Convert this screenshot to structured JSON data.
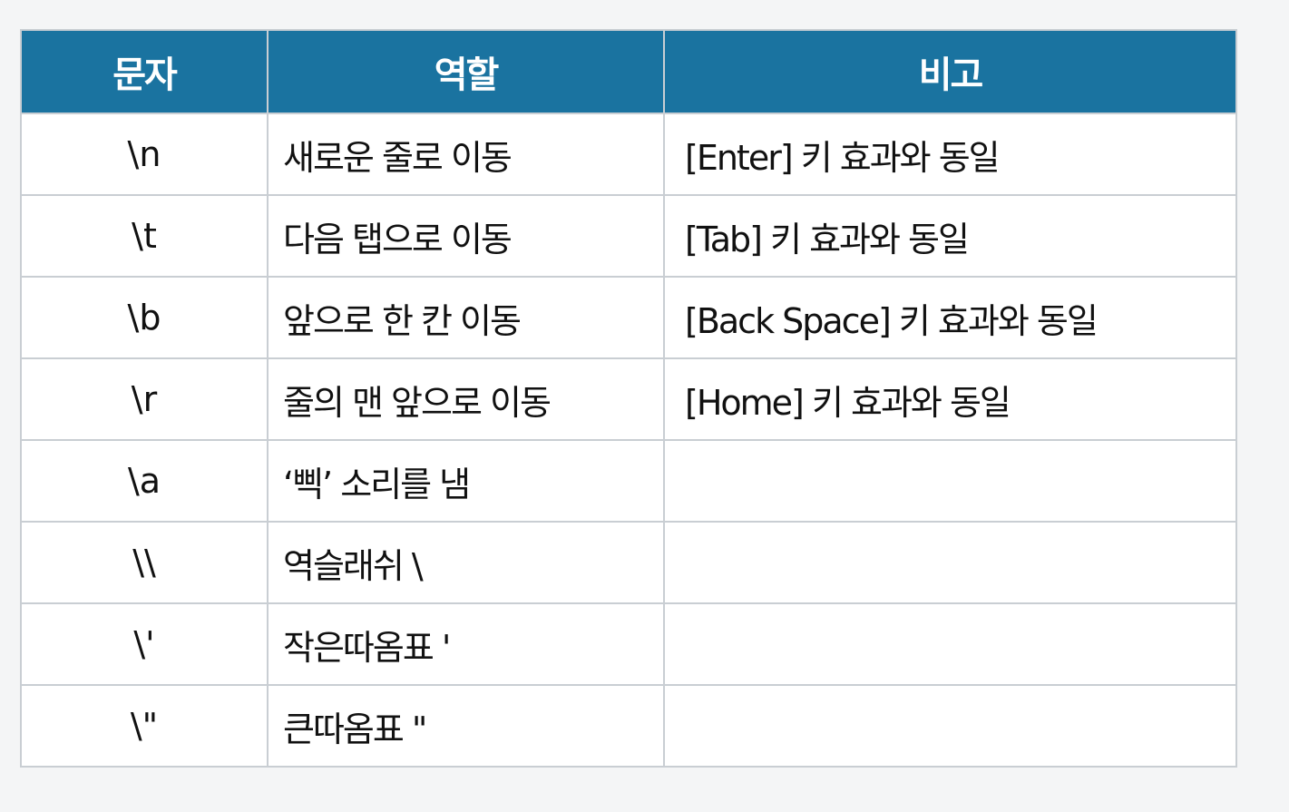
{
  "headers": {
    "char": "문자",
    "role": "역할",
    "note": "비고"
  },
  "rows": [
    {
      "char": "\\n",
      "role": "새로운 줄로 이동",
      "note": "[Enter] 키 효과와 동일"
    },
    {
      "char": "\\t",
      "role": "다음 탭으로 이동",
      "note": "[Tab] 키 효과와 동일"
    },
    {
      "char": "\\b",
      "role": "앞으로 한 칸 이동",
      "note": "[Back Space] 키 효과와 동일"
    },
    {
      "char": "\\r",
      "role": "줄의 맨 앞으로 이동",
      "note": "[Home] 키 효과와 동일"
    },
    {
      "char": "\\a",
      "role": "‘삑’ 소리를 냄",
      "note": ""
    },
    {
      "char": "\\\\",
      "role": "역슬래쉬 \\",
      "note": ""
    },
    {
      "char": "\\'",
      "role": "작은따옴표 '",
      "note": ""
    },
    {
      "char": "\\\"",
      "role": "큰따옴표 \"",
      "note": ""
    }
  ],
  "colors": {
    "header_bg": "#1a73a0",
    "header_text": "#ffffff",
    "border": "#c9ced3"
  }
}
